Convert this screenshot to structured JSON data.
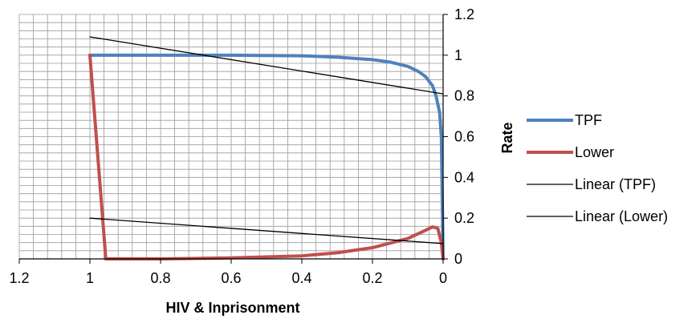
{
  "chart_data": {
    "type": "line",
    "xlabel": "HIV & Inprisonment",
    "ylabel": "Rate",
    "xlim": [
      1.2,
      0
    ],
    "ylim": [
      0,
      1.2
    ],
    "x_reversed": true,
    "x_ticks": [
      {
        "value": 1.2,
        "label": "1.2"
      },
      {
        "value": 1.0,
        "label": "1"
      },
      {
        "value": 0.8,
        "label": "0.8"
      },
      {
        "value": 0.6,
        "label": "0.6"
      },
      {
        "value": 0.4,
        "label": "0.4"
      },
      {
        "value": 0.2,
        "label": "0.2"
      },
      {
        "value": 0.0,
        "label": "0"
      }
    ],
    "y_ticks": [
      {
        "value": 0,
        "label": "0"
      },
      {
        "value": 0.2,
        "label": "0.2"
      },
      {
        "value": 0.4,
        "label": "0.4"
      },
      {
        "value": 0.6,
        "label": "0.6"
      },
      {
        "value": 0.8,
        "label": "0.8"
      },
      {
        "value": 1.0,
        "label": "1"
      },
      {
        "value": 1.2,
        "label": "1.2"
      }
    ],
    "grid": true,
    "legend_position": "right",
    "series": [
      {
        "name": "TPF",
        "color": "#4F81BD",
        "style": "thick",
        "points": [
          [
            1.0,
            1.0
          ],
          [
            0.8,
            1.0
          ],
          [
            0.6,
            1.0
          ],
          [
            0.4,
            0.997
          ],
          [
            0.3,
            0.99
          ],
          [
            0.2,
            0.978
          ],
          [
            0.15,
            0.966
          ],
          [
            0.1,
            0.945
          ],
          [
            0.07,
            0.92
          ],
          [
            0.05,
            0.895
          ],
          [
            0.03,
            0.85
          ],
          [
            0.02,
            0.8
          ],
          [
            0.01,
            0.72
          ],
          [
            0.005,
            0.6
          ],
          [
            0.0,
            0.0
          ]
        ]
      },
      {
        "name": "Lower",
        "color": "#C0504D",
        "style": "thick",
        "points": [
          [
            1.0,
            1.0
          ],
          [
            0.955,
            0.0
          ],
          [
            0.8,
            0.0
          ],
          [
            0.6,
            0.005
          ],
          [
            0.4,
            0.015
          ],
          [
            0.3,
            0.03
          ],
          [
            0.2,
            0.055
          ],
          [
            0.1,
            0.1
          ],
          [
            0.05,
            0.14
          ],
          [
            0.03,
            0.157
          ],
          [
            0.015,
            0.15
          ],
          [
            0.005,
            0.08
          ],
          [
            0.0,
            0.0
          ]
        ]
      },
      {
        "name": "Linear (TPF)",
        "color": "#000000",
        "style": "thin",
        "points": [
          [
            1.0,
            1.09
          ],
          [
            0.0,
            0.81
          ]
        ]
      },
      {
        "name": "Linear (Lower)",
        "color": "#000000",
        "style": "thin",
        "points": [
          [
            1.0,
            0.2
          ],
          [
            0.0,
            0.075
          ]
        ]
      }
    ]
  }
}
